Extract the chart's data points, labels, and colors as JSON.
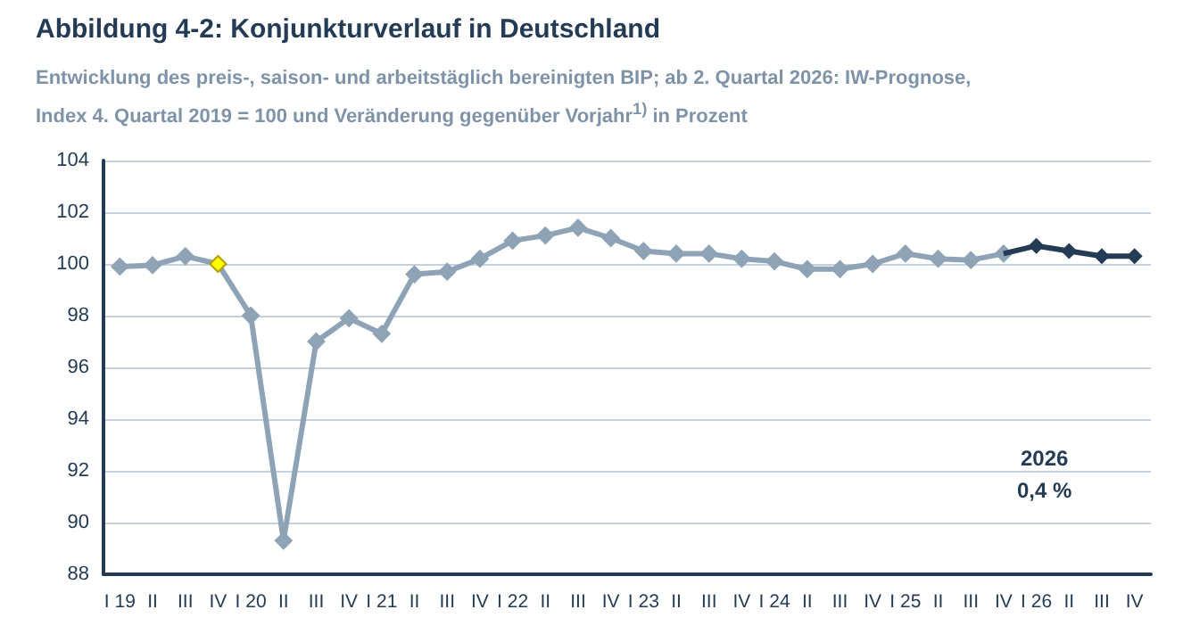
{
  "chart_data": {
    "type": "line",
    "title": "Abbildung 4-2: Konjunkturverlauf in Deutschland",
    "subtitle": "Entwicklung des preis-, saison- und arbeitstäglich bereinigten BIP; ab 2. Quartal 2026: IW-Prognose, Index 4. Quartal 2019 = 100 und Veränderung gegenüber Vorjahr$^{1)}$ in Prozent",
    "categories": [
      "I 19",
      "II",
      "III",
      "IV",
      "I 20",
      "II",
      "III",
      "IV",
      "I 21",
      "II",
      "III",
      "IV",
      "I 22",
      "II",
      "III",
      "IV",
      "I 23",
      "II",
      "III",
      "IV",
      "I 24",
      "II",
      "III",
      "IV",
      "I 25",
      "II",
      "III",
      "IV",
      "I 26",
      "II",
      "III",
      "IV"
    ],
    "series": [
      {
        "color": "#8fa3b6",
        "colors": [
          "#8fa3b6",
          "#8fa3b6",
          "#8fa3b6",
          "#ffff00",
          "#8fa3b6",
          "#8fa3b6",
          "#8fa3b6",
          "#8fa3b6",
          "#8fa3b6",
          "#8fa3b6",
          "#8fa3b6",
          "#8fa3b6",
          "#8fa3b6",
          "#8fa3b6",
          "#8fa3b6",
          "#8fa3b6",
          "#8fa3b6",
          "#8fa3b6",
          "#8fa3b6",
          "#8fa3b6",
          "#8fa3b6",
          "#8fa3b6",
          "#8fa3b6",
          "#8fa3b6",
          "#8fa3b6",
          "#8fa3b6",
          "#8fa3b6",
          "#8fa3b6",
          null,
          null,
          null,
          null
        ],
        "values": [
          99.9,
          99.95,
          100.3,
          100.0,
          98.0,
          89.3,
          97.0,
          97.9,
          97.3,
          99.6,
          99.7,
          100.2,
          100.9,
          101.1,
          101.4,
          101.0,
          100.5,
          100.4,
          100.4,
          100.2,
          100.1,
          99.8,
          99.8,
          100.0,
          100.4,
          100.2,
          100.15,
          100.4,
          null,
          null,
          null,
          null
        ]
      },
      {
        "color": "#243b55",
        "values": [
          null,
          null,
          null,
          null,
          null,
          null,
          null,
          null,
          null,
          null,
          null,
          null,
          null,
          null,
          null,
          null,
          null,
          null,
          null,
          null,
          null,
          null,
          null,
          null,
          null,
          null,
          null,
          100.4,
          100.7,
          100.5,
          100.3,
          100.3
        ]
      }
    ],
    "ylim": [
      88,
      104
    ],
    "yticks": [
      88,
      90,
      92,
      94,
      96,
      98,
      100,
      102,
      104
    ],
    "grid": "y",
    "marker": "diamond",
    "annotations": [
      "2026",
      "0,4 %"
    ]
  }
}
